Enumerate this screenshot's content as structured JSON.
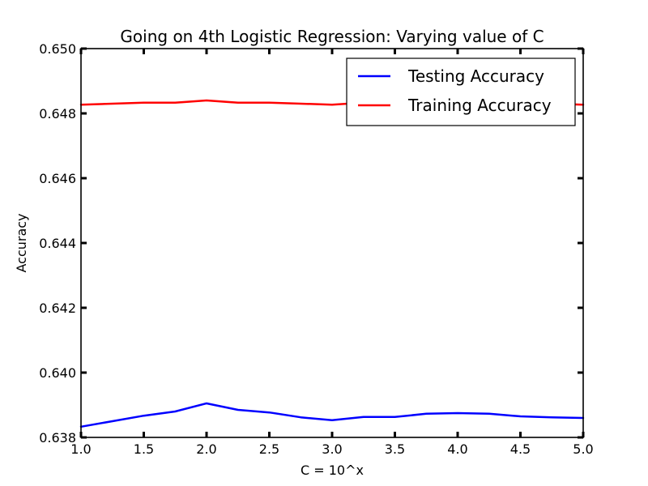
{
  "chart_data": {
    "type": "line",
    "title": "Going on 4th Logistic Regression: Varying value of C",
    "xlabel": "C = 10^x",
    "ylabel": "Accuracy",
    "xlim": [
      1.0,
      5.0
    ],
    "ylim": [
      0.638,
      0.65
    ],
    "xticks": [
      "1.0",
      "1.5",
      "2.0",
      "2.5",
      "3.0",
      "3.5",
      "4.0",
      "4.5",
      "5.0"
    ],
    "yticks": [
      "0.638",
      "0.640",
      "0.642",
      "0.644",
      "0.646",
      "0.648",
      "0.650"
    ],
    "x": [
      1.0,
      1.25,
      1.5,
      1.75,
      2.0,
      2.25,
      2.5,
      2.75,
      3.0,
      3.25,
      3.5,
      3.75,
      4.0,
      4.25,
      4.5,
      4.75,
      5.0
    ],
    "series": [
      {
        "name": "Testing Accuracy",
        "color": "#0000ff",
        "values": [
          0.63833,
          0.6385,
          0.63867,
          0.6388,
          0.63905,
          0.63885,
          0.63877,
          0.63862,
          0.63853,
          0.63863,
          0.63863,
          0.63873,
          0.63875,
          0.63873,
          0.63865,
          0.63862,
          0.6386
        ]
      },
      {
        "name": "Training Accuracy",
        "color": "#ff0000",
        "values": [
          0.64827,
          0.6483,
          0.64833,
          0.64833,
          0.6484,
          0.64833,
          0.64833,
          0.6483,
          0.64827,
          0.64833,
          0.64837,
          0.64833,
          0.6483,
          0.6483,
          0.6483,
          0.6483,
          0.64827
        ]
      }
    ],
    "legend_position": "top-right",
    "grid": false
  }
}
